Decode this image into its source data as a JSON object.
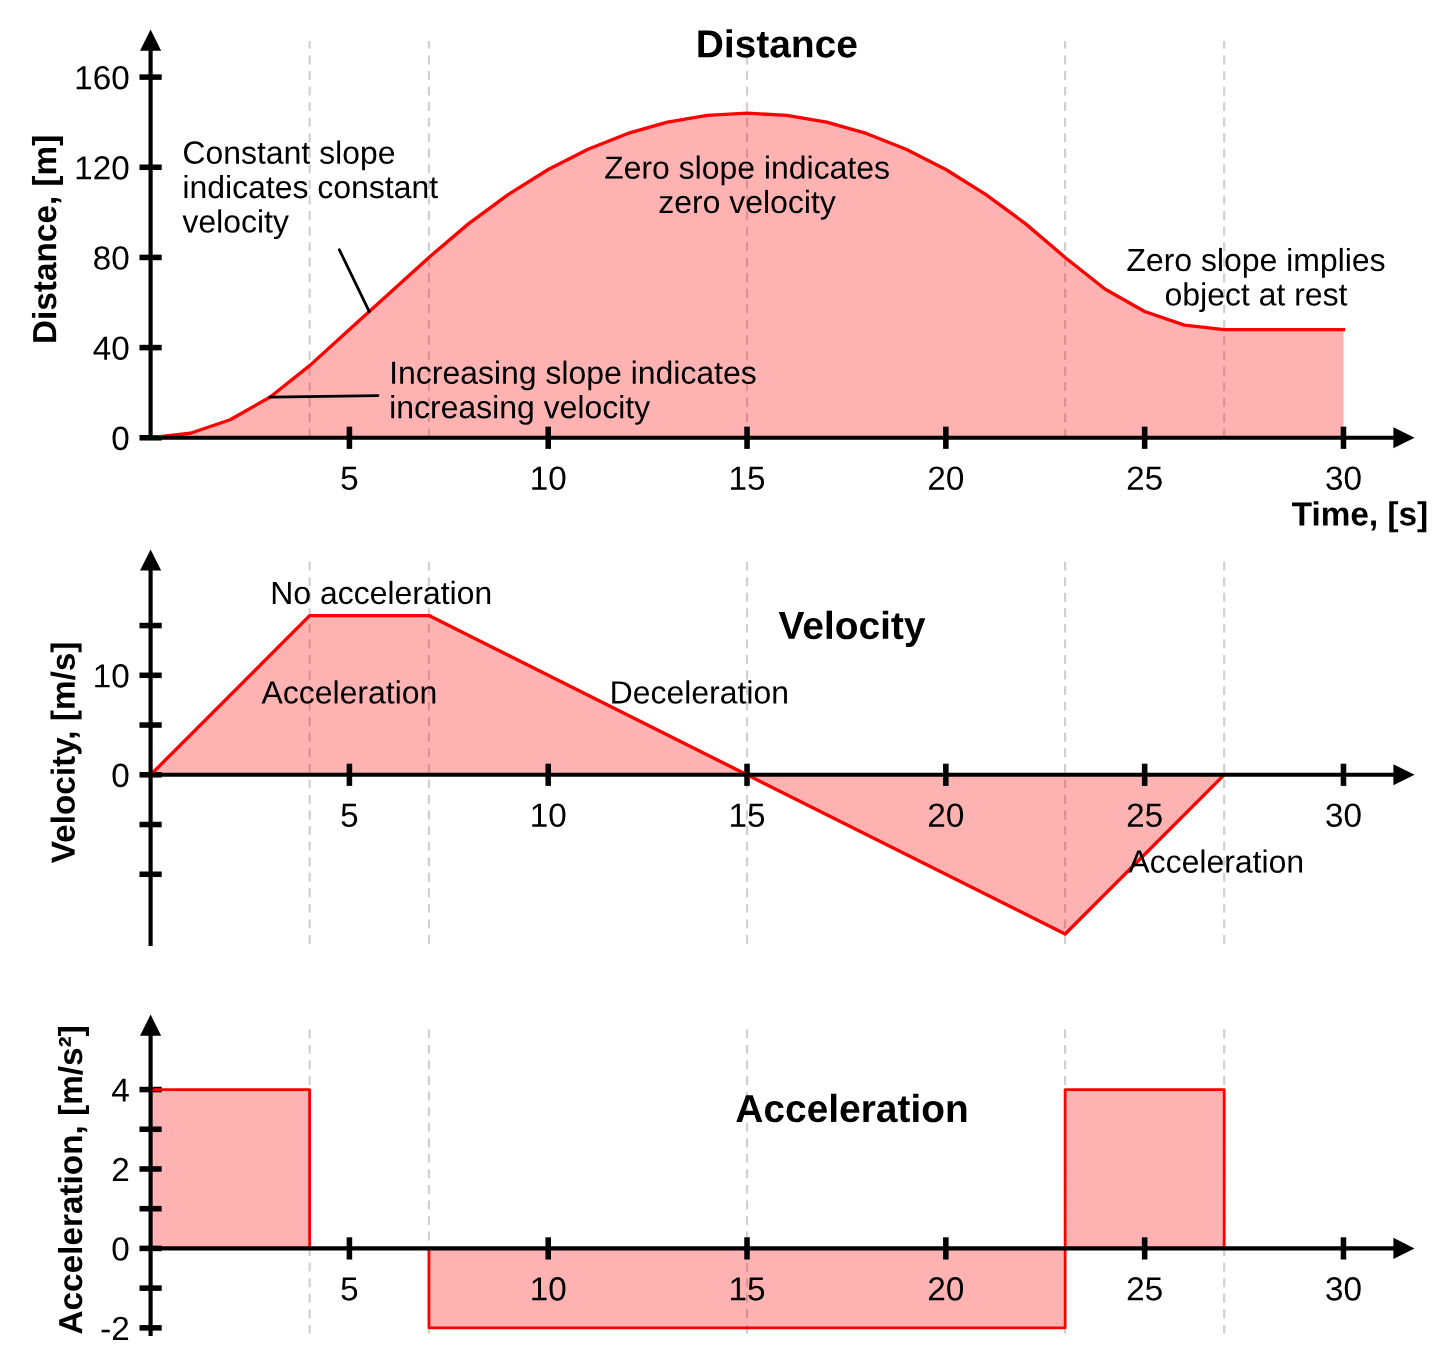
{
  "chart_data": [
    {
      "type": "area",
      "title": "Distance",
      "xlabel": "Time, [s]",
      "ylabel": "Distance, [m]",
      "x": [
        0,
        1,
        2,
        3,
        4,
        5,
        6,
        7,
        8,
        9,
        10,
        11,
        12,
        13,
        14,
        15,
        16,
        17,
        18,
        19,
        20,
        21,
        22,
        23,
        24,
        25,
        26,
        27,
        28,
        29,
        30
      ],
      "series": [
        {
          "color": "#ff0000",
          "values": [
            0,
            2,
            8,
            18,
            32,
            48,
            64,
            80,
            95,
            108,
            119,
            128,
            135,
            140,
            143,
            144,
            143,
            140,
            135,
            128,
            119,
            108,
            95,
            80,
            66,
            56,
            50,
            48,
            48,
            48,
            48
          ]
        }
      ],
      "xlim": [
        0,
        31.5
      ],
      "ylim": [
        0,
        176
      ],
      "xticks": [
        5,
        10,
        15,
        20,
        25,
        30
      ],
      "yticks": [
        0,
        40,
        80,
        120,
        160
      ],
      "ref_lines": [
        {
          "axis": "x",
          "value": 4,
          "color": "#d0d0d0",
          "line_style": "dashed"
        },
        {
          "axis": "x",
          "value": 7,
          "color": "#d0d0d0",
          "line_style": "dashed"
        },
        {
          "axis": "x",
          "value": 15,
          "color": "#d0d0d0",
          "line_style": "dashed"
        },
        {
          "axis": "x",
          "value": 23,
          "color": "#d0d0d0",
          "line_style": "dashed"
        },
        {
          "axis": "x",
          "value": 27,
          "color": "#d0d0d0",
          "line_style": "dashed"
        }
      ],
      "annotations": [
        {
          "text": "Constant slope\nindicates constant\nvelocity",
          "x": 5.5,
          "y": 56
        },
        {
          "text": "Increasing slope indicates\nincreasing velocity",
          "x": 3,
          "y": 18
        },
        {
          "text": "Zero slope indicates\nzero velocity",
          "x": 15,
          "y": 144
        },
        {
          "text": "Zero slope implies\nobject at rest",
          "x": 28.5,
          "y": 48
        }
      ],
      "grid": false
    },
    {
      "type": "area",
      "title": "Velocity",
      "ylabel": "Velocity, [m/s]",
      "x": [
        0,
        4,
        7,
        15,
        23,
        27
      ],
      "series": [
        {
          "color": "#ff0000",
          "values": [
            0,
            16,
            16,
            0,
            -16,
            0
          ]
        }
      ],
      "xlim": [
        0,
        31.5
      ],
      "ylim": [
        -17,
        21.5
      ],
      "xticks": [
        5,
        10,
        15,
        20,
        25,
        30
      ],
      "yticks": [
        {
          "value": -10,
          "label": null
        },
        {
          "value": -5,
          "label": null
        },
        0,
        {
          "value": 5,
          "label": null
        },
        10,
        {
          "value": 15,
          "label": null
        }
      ],
      "ref_lines": [
        {
          "axis": "x",
          "value": 4,
          "color": "#d0d0d0",
          "line_style": "dashed"
        },
        {
          "axis": "x",
          "value": 7,
          "color": "#d0d0d0",
          "line_style": "dashed"
        },
        {
          "axis": "x",
          "value": 15,
          "color": "#d0d0d0",
          "line_style": "dashed"
        },
        {
          "axis": "x",
          "value": 23,
          "color": "#d0d0d0",
          "line_style": "dashed"
        },
        {
          "axis": "x",
          "value": 27,
          "color": "#d0d0d0",
          "line_style": "dashed"
        }
      ],
      "annotations": [
        {
          "text": "No acceleration",
          "x": 5.5,
          "y": 16
        },
        {
          "text": "Acceleration",
          "x": 2,
          "y": 8
        },
        {
          "text": "Deceleration",
          "x": 11,
          "y": 8
        },
        {
          "text": "Acceleration",
          "x": 25,
          "y": -8
        }
      ],
      "grid": false
    },
    {
      "type": "step",
      "title": "Acceleration",
      "ylabel": "Acceleration, [m/s²]",
      "x": [
        0,
        4,
        7,
        23,
        27
      ],
      "series": [
        {
          "color": "#ff0000",
          "values": [
            4,
            0,
            -2,
            4,
            0
          ]
        }
      ],
      "xlim": [
        0,
        31.5
      ],
      "ylim": [
        -2.15,
        5.6
      ],
      "xticks": [
        5,
        10,
        15,
        20,
        25,
        30
      ],
      "yticks": [
        -2,
        {
          "value": -1,
          "label": null
        },
        0,
        {
          "value": 1,
          "label": null
        },
        2,
        {
          "value": 3,
          "label": null
        },
        4
      ],
      "ref_lines": [
        {
          "axis": "x",
          "value": 4,
          "color": "#d0d0d0",
          "line_style": "dashed"
        },
        {
          "axis": "x",
          "value": 7,
          "color": "#d0d0d0",
          "line_style": "dashed"
        },
        {
          "axis": "x",
          "value": 15,
          "color": "#d0d0d0",
          "line_style": "dashed"
        },
        {
          "axis": "x",
          "value": 23,
          "color": "#d0d0d0",
          "line_style": "dashed"
        },
        {
          "axis": "x",
          "value": 27,
          "color": "#d0d0d0",
          "line_style": "dashed"
        }
      ],
      "grid": false
    }
  ]
}
